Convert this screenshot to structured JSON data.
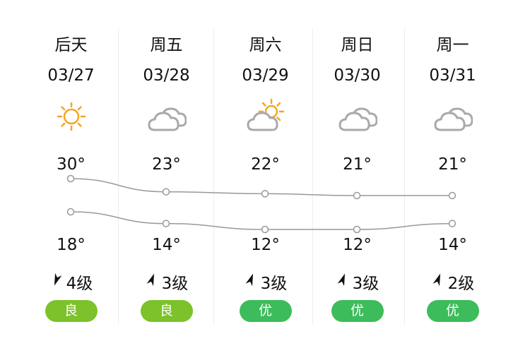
{
  "days": [
    {
      "day": "后天",
      "date": "03/27",
      "icon": "sun-icon",
      "high": 30,
      "low": 18,
      "high_label": "30°",
      "low_label": "18°",
      "wind": "4级",
      "wind_dir": "southwest",
      "aqi": "良",
      "aqi_color": "#7cc22a"
    },
    {
      "day": "周五",
      "date": "03/28",
      "icon": "cloudy-icon",
      "high": 23,
      "low": 14,
      "high_label": "23°",
      "low_label": "14°",
      "wind": "3级",
      "wind_dir": "northeast",
      "aqi": "良",
      "aqi_color": "#7cc22a"
    },
    {
      "day": "周六",
      "date": "03/29",
      "icon": "partly-cloudy-icon",
      "high": 22,
      "low": 12,
      "high_label": "22°",
      "low_label": "12°",
      "wind": "3级",
      "wind_dir": "northeast",
      "aqi": "优",
      "aqi_color": "#3cbc5a"
    },
    {
      "day": "周日",
      "date": "03/30",
      "icon": "cloudy-icon",
      "high": 21,
      "low": 12,
      "high_label": "21°",
      "low_label": "12°",
      "wind": "3级",
      "wind_dir": "northeast",
      "aqi": "优",
      "aqi_color": "#3cbc5a"
    },
    {
      "day": "周一",
      "date": "03/31",
      "icon": "cloudy-icon",
      "high": 21,
      "low": 14,
      "high_label": "21°",
      "low_label": "14°",
      "wind": "2级",
      "wind_dir": "northeast",
      "aqi": "优",
      "aqi_color": "#3cbc5a"
    }
  ],
  "colors": {
    "sun": "#f5a623",
    "cloud": "#a9a9a9",
    "line": "#999999"
  }
}
